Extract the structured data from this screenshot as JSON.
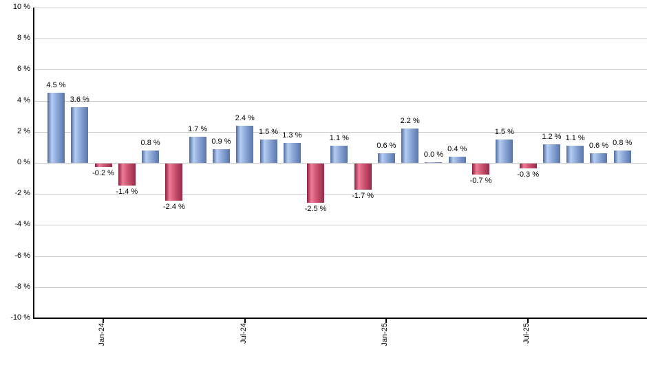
{
  "chart_data": {
    "type": "bar",
    "title": "",
    "xlabel": "",
    "ylabel": "",
    "ylim": [
      -10,
      10
    ],
    "y_tick_step": 2,
    "grid": true,
    "legend": "none",
    "y_tick_labels": [
      "10 %",
      "8 %",
      "6 %",
      "4 %",
      "2 %",
      "0 %",
      "-2 %",
      "-4 %",
      "-6 %",
      "-8 %",
      "-10 %"
    ],
    "values": [
      4.5,
      3.6,
      -0.2,
      -1.4,
      0.8,
      -2.4,
      1.7,
      0.9,
      2.4,
      1.5,
      1.3,
      -2.5,
      1.1,
      -1.7,
      0.6,
      2.2,
      0.0,
      0.4,
      -0.7,
      1.5,
      -0.3,
      1.2,
      1.1,
      0.6,
      0.8
    ],
    "bar_labels": [
      "4.5 %",
      "3.6 %",
      "-0.2 %",
      "-1.4 %",
      "0.8 %",
      "-2.4 %",
      "1.7 %",
      "0.9 %",
      "2.4 %",
      "1.5 %",
      "1.3 %",
      "-2.5 %",
      "1.1 %",
      "-1.7 %",
      "0.6 %",
      "2.2 %",
      "0.0 %",
      "0.4 %",
      "-0.7 %",
      "1.5 %",
      "-0.3 %",
      "1.2 %",
      "1.1 %",
      "0.6 %",
      "0.8 %"
    ],
    "x_ticks": [
      {
        "label": "Jan-24",
        "bar_index": 2
      },
      {
        "label": "Jul-24",
        "bar_index": 8
      },
      {
        "label": "Jan-25",
        "bar_index": 14
      },
      {
        "label": "Jul-25",
        "bar_index": 20
      }
    ],
    "colors": {
      "positive_gradient": [
        "#4d6ba3",
        "#b7cdf0",
        "#8ba8d8",
        "#5a75a8"
      ],
      "negative_gradient": [
        "#8c1e3e",
        "#ec7d97",
        "#cf5472",
        "#942b49"
      ],
      "gridline": "#c9c9c9",
      "axis": "#000000",
      "label_text": "#000000",
      "background": "#ffffff"
    }
  }
}
